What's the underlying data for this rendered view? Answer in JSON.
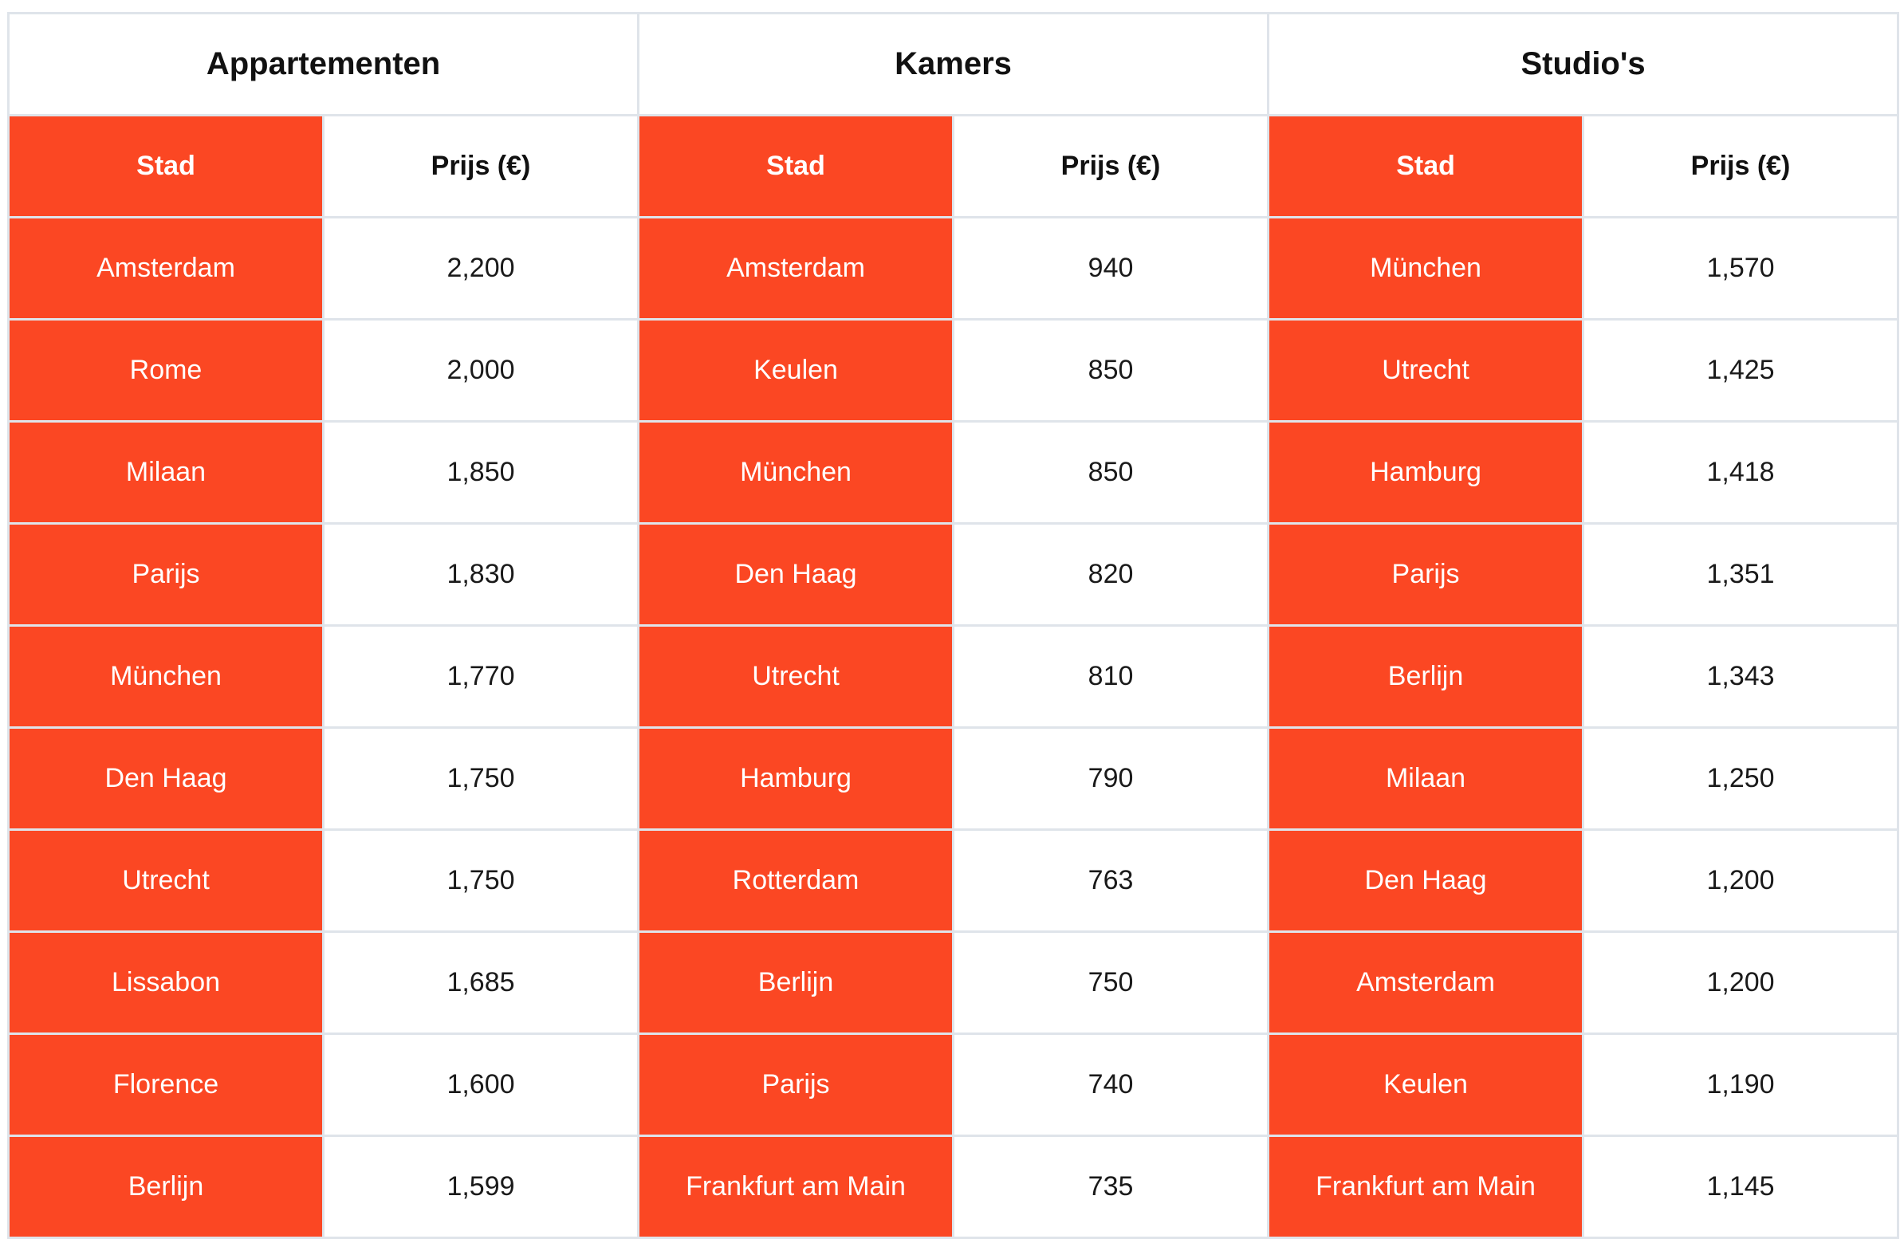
{
  "groups": [
    {
      "title": "Appartementen",
      "city_header": "Stad",
      "price_header": "Prijs (€)"
    },
    {
      "title": "Kamers",
      "city_header": "Stad",
      "price_header": "Prijs (€)"
    },
    {
      "title": "Studio's",
      "city_header": "Stad",
      "price_header": "Prijs (€)"
    }
  ],
  "rows": [
    [
      {
        "city": "Amsterdam",
        "price": "2,200"
      },
      {
        "city": "Amsterdam",
        "price": "940"
      },
      {
        "city": "München",
        "price": "1,570"
      }
    ],
    [
      {
        "city": "Rome",
        "price": "2,000"
      },
      {
        "city": "Keulen",
        "price": "850"
      },
      {
        "city": "Utrecht",
        "price": "1,425"
      }
    ],
    [
      {
        "city": "Milaan",
        "price": "1,850"
      },
      {
        "city": "München",
        "price": "850"
      },
      {
        "city": "Hamburg",
        "price": "1,418"
      }
    ],
    [
      {
        "city": "Parijs",
        "price": "1,830"
      },
      {
        "city": "Den Haag",
        "price": "820"
      },
      {
        "city": "Parijs",
        "price": "1,351"
      }
    ],
    [
      {
        "city": "München",
        "price": "1,770"
      },
      {
        "city": "Utrecht",
        "price": "810"
      },
      {
        "city": "Berlijn",
        "price": "1,343"
      }
    ],
    [
      {
        "city": "Den Haag",
        "price": "1,750"
      },
      {
        "city": "Hamburg",
        "price": "790"
      },
      {
        "city": "Milaan",
        "price": "1,250"
      }
    ],
    [
      {
        "city": "Utrecht",
        "price": "1,750"
      },
      {
        "city": "Rotterdam",
        "price": "763"
      },
      {
        "city": "Den Haag",
        "price": "1,200"
      }
    ],
    [
      {
        "city": "Lissabon",
        "price": "1,685"
      },
      {
        "city": "Berlijn",
        "price": "750"
      },
      {
        "city": "Amsterdam",
        "price": "1,200"
      }
    ],
    [
      {
        "city": "Florence",
        "price": "1,600"
      },
      {
        "city": "Parijs",
        "price": "740"
      },
      {
        "city": "Keulen",
        "price": "1,190"
      }
    ],
    [
      {
        "city": "Berlijn",
        "price": "1,599"
      },
      {
        "city": "Frankfurt am Main",
        "price": "735"
      },
      {
        "city": "Frankfurt am Main",
        "price": "1,145"
      }
    ]
  ],
  "colors": {
    "accent": "#fb4723",
    "border": "#dfe4ea",
    "background": "#ffffff"
  }
}
